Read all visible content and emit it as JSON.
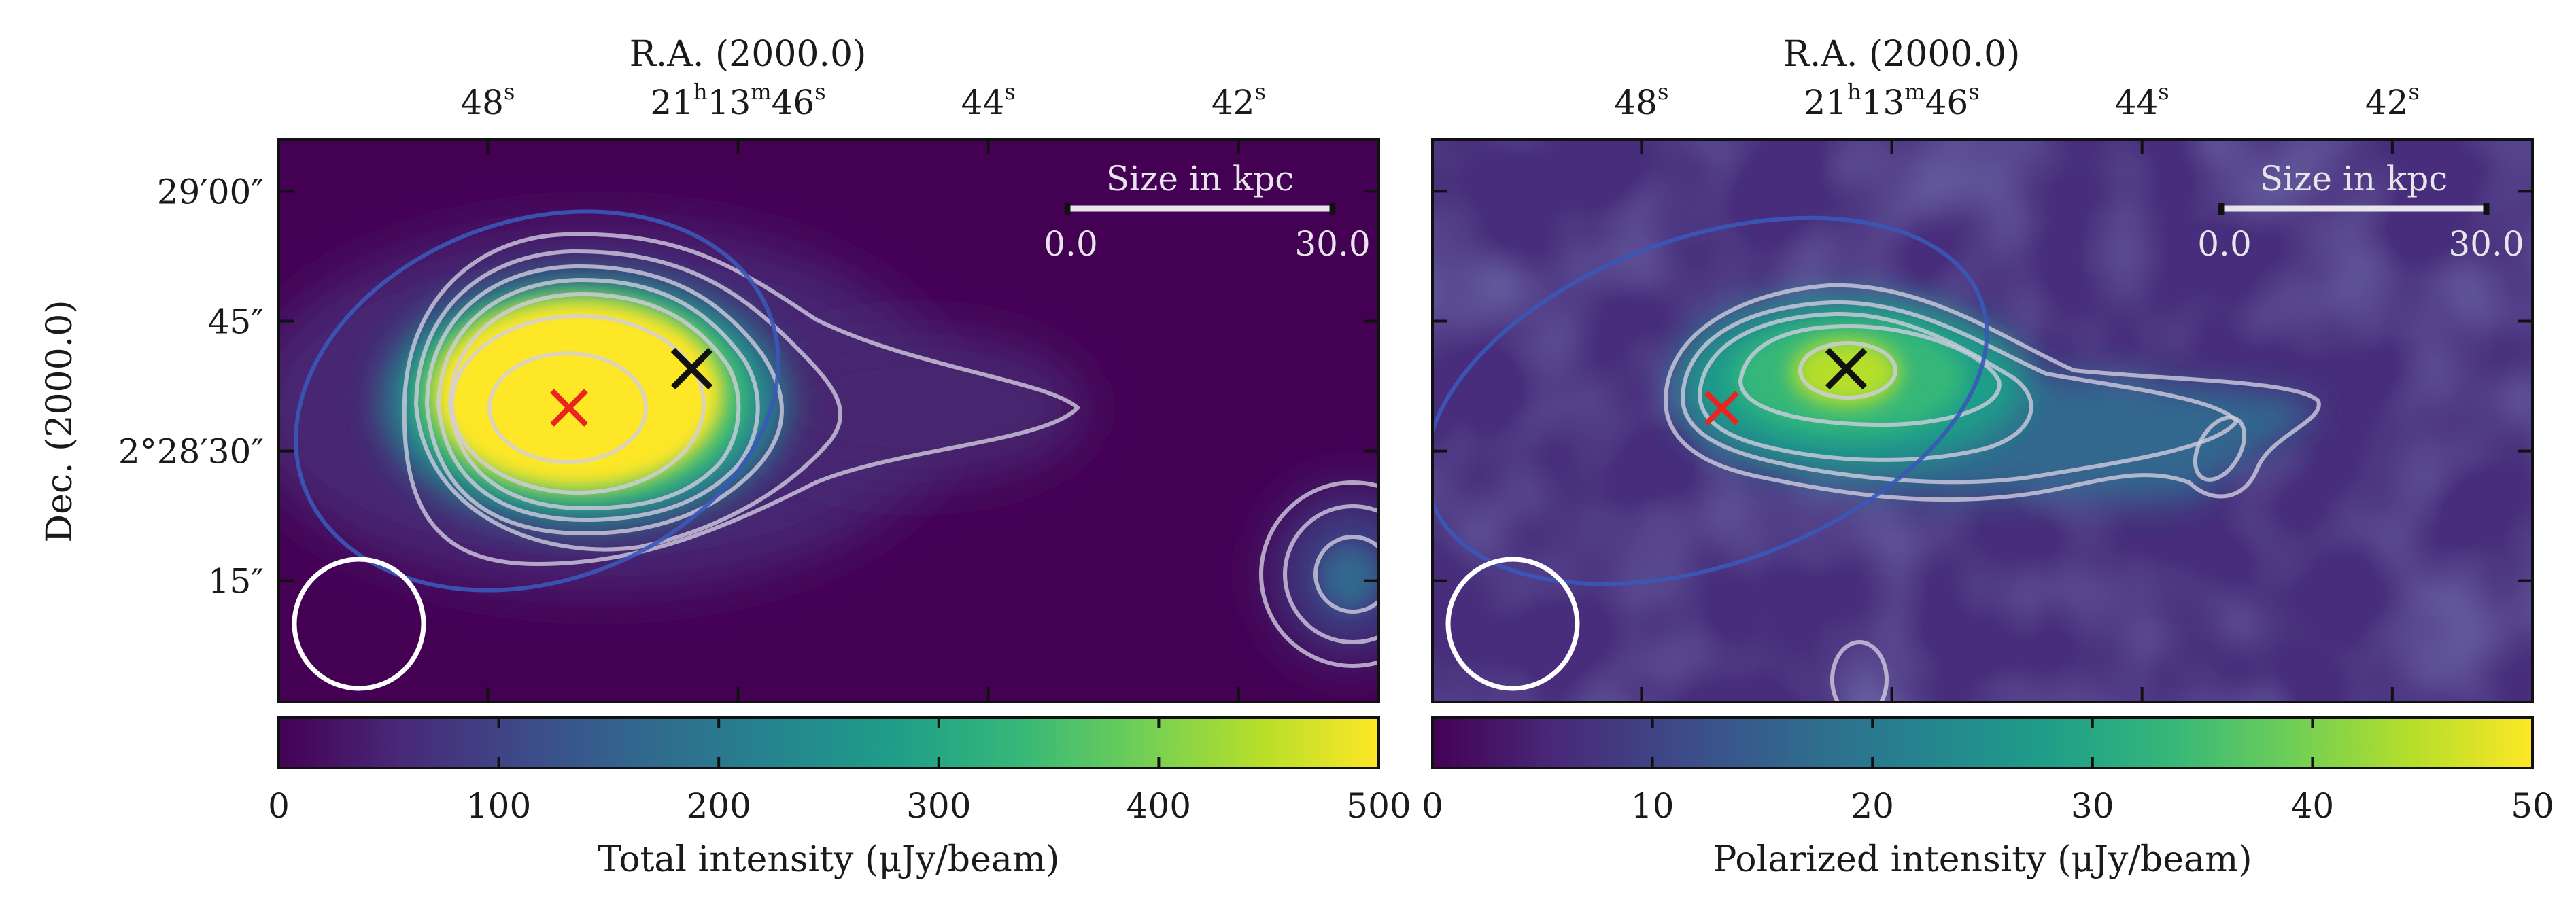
{
  "colors": {
    "background": "#440154",
    "viridis": [
      "#440154",
      "#482878",
      "#3e4989",
      "#31688e",
      "#26828e",
      "#1f9e89",
      "#35b779",
      "#6ece58",
      "#b5de2b",
      "#fde725"
    ],
    "source_marker_red": "#e8261f",
    "source_marker_black": "#111111",
    "blue_ellipse": "#3a58b8"
  },
  "chart_data": [
    {
      "type": "heatmap",
      "panel": "left",
      "map": "Total intensity",
      "top_axis_title": "R.A. (2000.0)",
      "left_axis_title": "Dec. (2000.0)",
      "ra_tick_labels": [
        {
          "ra_sec": 48,
          "h": "",
          "m": "",
          "s": "48"
        },
        {
          "ra_sec": 46,
          "h": "21",
          "m": "13",
          "s": "46"
        },
        {
          "ra_sec": 44,
          "h": "",
          "m": "",
          "s": "44"
        },
        {
          "ra_sec": 42,
          "h": "",
          "m": "",
          "s": "42"
        }
      ],
      "dec_tick_labels": [
        {
          "dec_offset_arcsec": 60,
          "text": "29′00″"
        },
        {
          "dec_offset_arcsec": 45,
          "text": "45″"
        },
        {
          "dec_offset_arcsec": 30,
          "text": "2°28′30″"
        },
        {
          "dec_offset_arcsec": 15,
          "text": "15″"
        }
      ],
      "ra_range_sec": [
        49.67,
        40.88
      ],
      "dec_range_arcsec": [
        66,
        1
      ],
      "scale_bar": {
        "title": "Size in kpc",
        "left_label": "0.0",
        "right_label": "30.0",
        "length_kpc": 30.0
      },
      "colorbar": {
        "label": "Total intensity (μJy/beam)",
        "min": 0,
        "max": 500,
        "ticks": [
          "0",
          "100",
          "200",
          "300",
          "400",
          "500"
        ],
        "cmap": "viridis"
      },
      "markers": [
        {
          "color": "red",
          "ra_sec": 47.15,
          "dec_offset_arcsec": 35
        },
        {
          "color": "black",
          "ra_sec": 46.2,
          "dec_offset_arcsec": 40
        }
      ],
      "peak_value": 500
    },
    {
      "type": "heatmap",
      "panel": "right",
      "map": "Polarized intensity",
      "top_axis_title": "R.A. (2000.0)",
      "ra_tick_labels": [
        {
          "ra_sec": 48,
          "h": "",
          "m": "",
          "s": "48"
        },
        {
          "ra_sec": 46,
          "h": "21",
          "m": "13",
          "s": "46"
        },
        {
          "ra_sec": 44,
          "h": "",
          "m": "",
          "s": "44"
        },
        {
          "ra_sec": 42,
          "h": "",
          "m": "",
          "s": "42"
        }
      ],
      "ra_range_sec": [
        49.67,
        40.88
      ],
      "dec_range_arcsec": [
        66,
        1
      ],
      "scale_bar": {
        "title": "Size in kpc",
        "left_label": "0.0",
        "right_label": "30.0",
        "length_kpc": 30.0
      },
      "colorbar": {
        "label": "Polarized intensity (μJy/beam)",
        "min": 0,
        "max": 50,
        "ticks": [
          "0",
          "10",
          "20",
          "30",
          "40",
          "50"
        ],
        "cmap": "viridis"
      },
      "markers": [
        {
          "color": "red",
          "ra_sec": 47.15,
          "dec_offset_arcsec": 35
        },
        {
          "color": "black",
          "ra_sec": 46.2,
          "dec_offset_arcsec": 40
        }
      ],
      "peak_value": 45
    }
  ]
}
